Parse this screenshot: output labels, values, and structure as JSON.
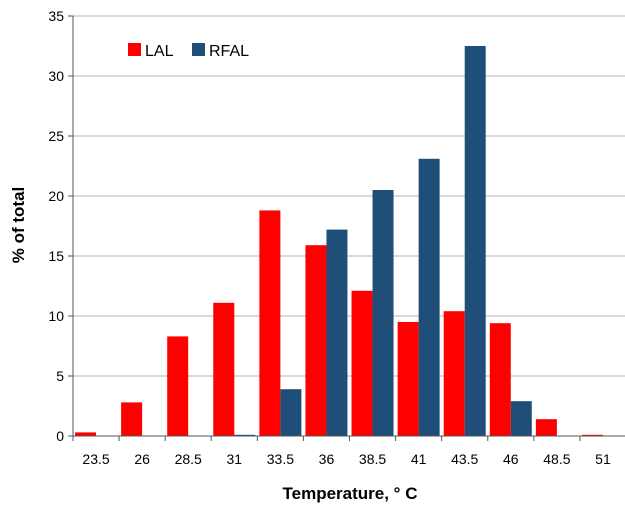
{
  "chart_data": {
    "type": "bar",
    "categories": [
      "23.5",
      "26",
      "28.5",
      "31",
      "33.5",
      "36",
      "38.5",
      "41",
      "43.5",
      "46",
      "48.5",
      "51"
    ],
    "series": [
      {
        "name": "LAL",
        "color": "#ff0000",
        "values": [
          0.3,
          2.8,
          8.3,
          11.1,
          18.8,
          15.9,
          12.1,
          9.5,
          10.4,
          9.4,
          1.4,
          0.1
        ]
      },
      {
        "name": "RFAL",
        "color": "#1f4e79",
        "values": [
          0,
          0,
          0,
          0.1,
          3.9,
          17.2,
          20.5,
          23.1,
          32.5,
          2.9,
          0,
          0
        ]
      }
    ],
    "xlabel": "Temperature, ° C",
    "ylabel": "% of total",
    "ylim": [
      0,
      35
    ],
    "yticks": [
      0,
      5,
      10,
      15,
      20,
      25,
      30,
      35
    ],
    "grid": true,
    "legend_position": "top-left"
  }
}
